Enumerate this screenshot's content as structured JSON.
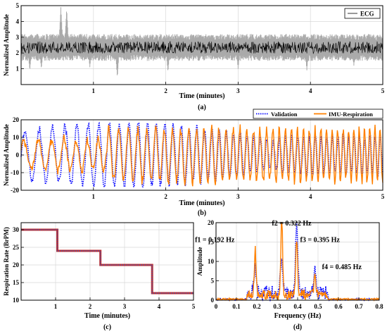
{
  "chart_data": [
    {
      "type": "line",
      "panel_label": "(a)",
      "xlabel": "Time (minutes)",
      "ylabel": "Normalized Amplitude",
      "xlim": [
        0,
        5
      ],
      "ylim": [
        0,
        5
      ],
      "xticks": [
        1,
        2,
        3,
        4,
        5
      ],
      "yticks": [
        1,
        2,
        3,
        4,
        5
      ],
      "grid": true,
      "legend": "top-right",
      "series": [
        {
          "name": "ECG",
          "color": "#000000",
          "envelope_color": "#aaaaaa",
          "baseline": 2.35,
          "envelope_low": 1.5,
          "envelope_high": 3.2,
          "spikes": [
            {
              "x": 0.12,
              "low": 0.9
            },
            {
              "x": 0.28,
              "low": 1.0
            },
            {
              "x": 0.55,
              "high": 4.9
            },
            {
              "x": 0.63,
              "high": 4.8
            },
            {
              "x": 0.95,
              "low": 1.1
            },
            {
              "x": 1.33,
              "low": 0.45
            },
            {
              "x": 2.03,
              "low": 0.8
            },
            {
              "x": 3.0,
              "low": 1.0
            },
            {
              "x": 3.95,
              "low": 0.9
            },
            {
              "x": 4.6,
              "low": 1.2
            }
          ]
        }
      ]
    },
    {
      "type": "line",
      "panel_label": "(b)",
      "xlabel": "Time (minutes)",
      "ylabel": "Normalized Amplitude",
      "xlim": [
        0,
        5
      ],
      "ylim": [
        -20,
        20
      ],
      "xticks": [
        1,
        2,
        3,
        4,
        5
      ],
      "yticks": [
        -20,
        -10,
        0,
        10,
        20
      ],
      "grid": true,
      "legend": "top",
      "series": [
        {
          "name": "Validation",
          "color": "#0000ff",
          "style": "dotted",
          "amplitude_range": [
            -18,
            18
          ]
        },
        {
          "name": "IMU-Respiration",
          "color": "#ff8000",
          "style": "solid",
          "amplitude_range": [
            -19,
            19
          ]
        }
      ]
    },
    {
      "type": "line",
      "panel_label": "(c)",
      "xlabel": "Time (minutes)",
      "ylabel": "Respiration Rate (BrPM)",
      "xlim": [
        0,
        5
      ],
      "ylim": [
        10,
        32
      ],
      "xticks": [
        1,
        2,
        3,
        4,
        5
      ],
      "yticks": [
        10,
        15,
        20,
        25,
        30
      ],
      "grid": true,
      "series": [
        {
          "style": "step",
          "color": "#c03030",
          "dot_color": "#3355bb",
          "points": [
            [
              0,
              30
            ],
            [
              1.05,
              30
            ],
            [
              1.05,
              24
            ],
            [
              2.3,
              24
            ],
            [
              2.3,
              20
            ],
            [
              3.8,
              20
            ],
            [
              3.8,
              12
            ],
            [
              5,
              12
            ]
          ]
        }
      ]
    },
    {
      "type": "line",
      "panel_label": "(d)",
      "xlabel": "Frequency (Hz)",
      "ylabel": "Amplitude",
      "xlim": [
        0,
        0.8
      ],
      "ylim": [
        0,
        20
      ],
      "xticks": [
        0,
        0.1,
        0.2,
        0.3,
        0.4,
        0.5,
        0.6,
        0.7,
        0.8
      ],
      "yticks": [
        0,
        5,
        10,
        15,
        20
      ],
      "grid": true,
      "series": [
        {
          "style": "dotted",
          "color": "#0000ff",
          "peaks": [
            [
              0.19,
              6
            ],
            [
              0.32,
              9
            ],
            [
              0.395,
              17
            ],
            [
              0.485,
              6.5
            ]
          ]
        },
        {
          "style": "solid",
          "color": "#ff8000",
          "peaks": [
            [
              0.192,
              11.5
            ],
            [
              0.322,
              20
            ],
            [
              0.395,
              14
            ],
            [
              0.485,
              5
            ]
          ]
        }
      ],
      "annotations": [
        {
          "text": "f2 = 0.322 Hz",
          "x": 0.322,
          "y": 19.3
        },
        {
          "text": "f1 = 0.192 Hz",
          "x": 0.19,
          "y": 15
        },
        {
          "text": "f3 = 0.395 Hz",
          "x": 0.395,
          "y": 15
        },
        {
          "text": "f4 = 0.485 Hz",
          "x": 0.485,
          "y": 8
        }
      ]
    }
  ]
}
